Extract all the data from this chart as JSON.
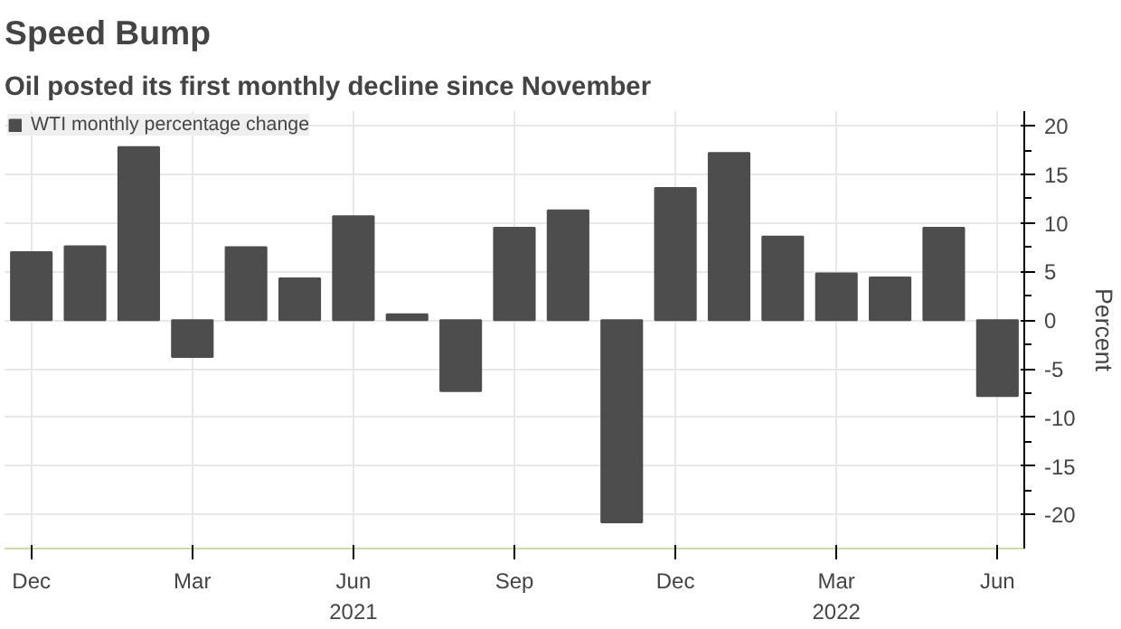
{
  "chart_data": {
    "type": "bar",
    "title": "Speed Bump",
    "subtitle": "Oil posted its first monthly decline since November",
    "ylabel": "Percent",
    "categories": [
      "Dec",
      null,
      null,
      "Mar",
      null,
      null,
      "Jun\n2021",
      null,
      null,
      "Sep",
      null,
      null,
      "Dec",
      null,
      null,
      "Mar\n2022",
      null,
      null,
      "Jun"
    ],
    "series": [
      {
        "name": "WTI monthly percentage change",
        "color": "#4d4d4d",
        "values": [
          7.0,
          7.6,
          17.8,
          -3.8,
          7.5,
          4.3,
          10.7,
          0.6,
          -7.3,
          9.5,
          11.3,
          -20.8,
          13.6,
          17.2,
          8.6,
          4.8,
          4.4,
          9.5,
          -7.8
        ]
      }
    ],
    "ylim": [
      -23.5,
      21.5
    ],
    "yticks": [
      -20,
      -15,
      -10,
      -5,
      0,
      5,
      10,
      15,
      20
    ],
    "grid": true,
    "legend": "top left"
  }
}
